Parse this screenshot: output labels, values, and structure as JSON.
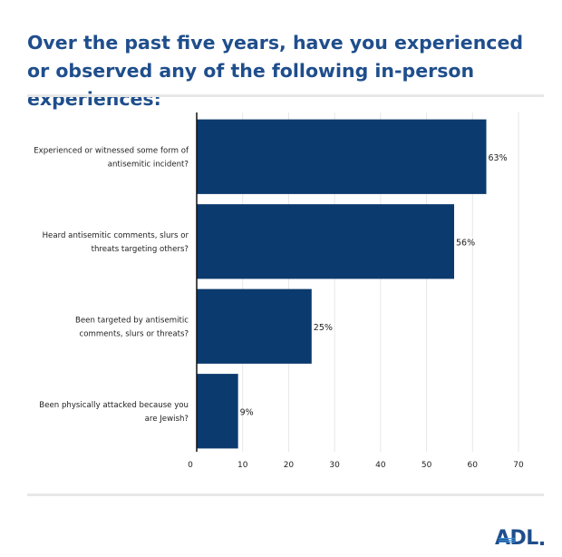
{
  "title": "Over the past five years, have you experienced or observed any of the following in-person experiences:",
  "logo_text": "ADL",
  "colors": {
    "title": "#1f4e8c",
    "bar": "#0b3a6e",
    "grid": "#e6e6e6",
    "axis": "#111111"
  },
  "chart_data": {
    "type": "bar",
    "orientation": "horizontal",
    "categories": [
      [
        "Experienced or witnessed some form of",
        "antisemitic incident?"
      ],
      [
        "Heard antisemitic comments, slurs or",
        "threats targeting others?"
      ],
      [
        "Been targeted by antisemitic",
        "comments, slurs or threats?"
      ],
      [
        "Been physically attacked because you",
        "are Jewish?"
      ]
    ],
    "values": [
      63,
      56,
      25,
      9
    ],
    "value_labels": [
      "63%",
      "56%",
      "25%",
      "9%"
    ],
    "xlim": [
      0,
      70
    ],
    "ticks": [
      0,
      10,
      20,
      30,
      40,
      50,
      60,
      70
    ],
    "grid": true
  }
}
